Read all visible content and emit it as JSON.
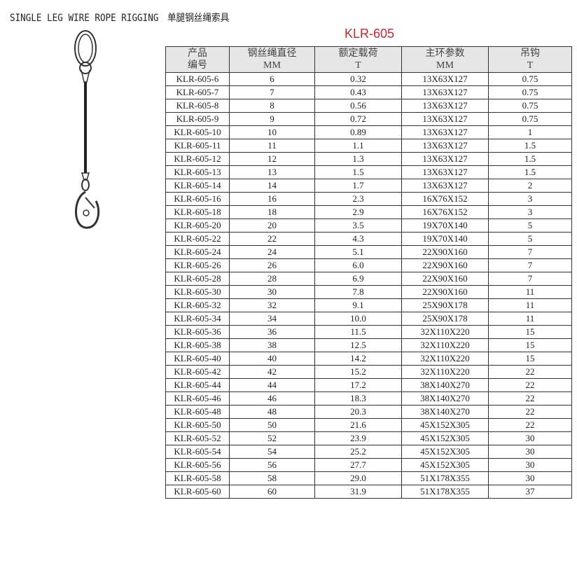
{
  "title": "SINGLE LEG WIRE ROPE RIGGING　单腿钢丝绳索具",
  "model": "KLR-605",
  "headers": [
    {
      "l1": "产品",
      "l2": "编号"
    },
    {
      "l1": "钢丝绳直径",
      "l2": "MM"
    },
    {
      "l1": "额定载荷",
      "l2": "T"
    },
    {
      "l1": "主环参数",
      "l2": "MM"
    },
    {
      "l1": "吊钩",
      "l2": "T"
    }
  ],
  "rows": [
    [
      "KLR-605-6",
      "6",
      "0.32",
      "13X63X127",
      "0.75"
    ],
    [
      "KLR-605-7",
      "7",
      "0.43",
      "13X63X127",
      "0.75"
    ],
    [
      "KLR-605-8",
      "8",
      "0.56",
      "13X63X127",
      "0.75"
    ],
    [
      "KLR-605-9",
      "9",
      "0.72",
      "13X63X127",
      "0.75"
    ],
    [
      "KLR-605-10",
      "10",
      "0.89",
      "13X63X127",
      "1"
    ],
    [
      "KLR-605-11",
      "11",
      "1.1",
      "13X63X127",
      "1.5"
    ],
    [
      "KLR-605-12",
      "12",
      "1.3",
      "13X63X127",
      "1.5"
    ],
    [
      "KLR-605-13",
      "13",
      "1.5",
      "13X63X127",
      "1.5"
    ],
    [
      "KLR-605-14",
      "14",
      "1.7",
      "13X63X127",
      "2"
    ],
    [
      "KLR-605-16",
      "16",
      "2.3",
      "16X76X152",
      "3"
    ],
    [
      "KLR-605-18",
      "18",
      "2.9",
      "16X76X152",
      "3"
    ],
    [
      "KLR-605-20",
      "20",
      "3.5",
      "19X70X140",
      "5"
    ],
    [
      "KLR-605-22",
      "22",
      "4.3",
      "19X70X140",
      "5"
    ],
    [
      "KLR-605-24",
      "24",
      "5.1",
      "22X90X160",
      "7"
    ],
    [
      "KLR-605-26",
      "26",
      "6.0",
      "22X90X160",
      "7"
    ],
    [
      "KLR-605-28",
      "28",
      "6.9",
      "22X90X160",
      "7"
    ],
    [
      "KLR-605-30",
      "30",
      "7.8",
      "22X90X160",
      "11"
    ],
    [
      "KLR-605-32",
      "32",
      "9.1",
      "25X90X178",
      "11"
    ],
    [
      "KLR-605-34",
      "34",
      "10.0",
      "25X90X178",
      "11"
    ],
    [
      "KLR-605-36",
      "36",
      "11.5",
      "32X110X220",
      "15"
    ],
    [
      "KLR-605-38",
      "38",
      "12.5",
      "32X110X220",
      "15"
    ],
    [
      "KLR-605-40",
      "40",
      "14.2",
      "32X110X220",
      "15"
    ],
    [
      "KLR-605-42",
      "42",
      "15.2",
      "32X110X220",
      "22"
    ],
    [
      "KLR-605-44",
      "44",
      "17.2",
      "38X140X270",
      "22"
    ],
    [
      "KLR-605-46",
      "46",
      "18.3",
      "38X140X270",
      "22"
    ],
    [
      "KLR-605-48",
      "48",
      "20.3",
      "38X140X270",
      "22"
    ],
    [
      "KLR-605-50",
      "50",
      "21.6",
      "45X152X305",
      "22"
    ],
    [
      "KLR-605-52",
      "52",
      "23.9",
      "45X152X305",
      "30"
    ],
    [
      "KLR-605-54",
      "54",
      "25.2",
      "45X152X305",
      "30"
    ],
    [
      "KLR-605-56",
      "56",
      "27.7",
      "45X152X305",
      "30"
    ],
    [
      "KLR-605-58",
      "58",
      "29.0",
      "51X178X355",
      "30"
    ],
    [
      "KLR-605-60",
      "60",
      "31.9",
      "51X178X355",
      "37"
    ]
  ],
  "colors": {
    "model": "#c0272d",
    "header_bg": "#e6e6e6"
  }
}
